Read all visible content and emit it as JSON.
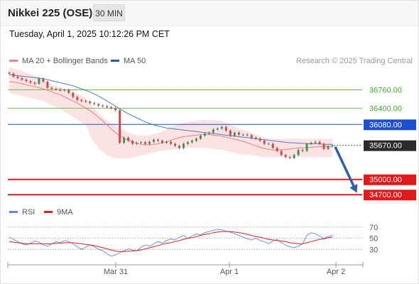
{
  "header": {
    "title": "Nikkei 225 (OSE)",
    "timeframe": "30 MIN",
    "datetime": "Tuesday, April 1, 2025 10:12:26 PM CET",
    "credit": "Research © 2025 Trading Central"
  },
  "legend": {
    "ma20": "MA 20 + Bollinger Bands",
    "ma50": "MA 50",
    "rsi": "RSI",
    "rsi_ma": "9MA"
  },
  "colors": {
    "ma20": "#f08080",
    "bb_fill": "#fbdede",
    "ma50": "#4e79c8",
    "resistance": "#6dbf4f",
    "pivot": "#1f4fd1",
    "support": "#e01a1a",
    "candle_up": "#2e9e48",
    "candle_down": "#e04343",
    "current": "#333333",
    "rsi": "#5b8ce0",
    "rsi_ma": "#e02020"
  },
  "chart_data": [
    {
      "type": "candlestick",
      "y_range": [
        34550,
        37200
      ],
      "x_labels": [
        "Mar 31",
        "Apr 1",
        "Apr 2"
      ],
      "levels": [
        {
          "label": "36760.00",
          "value": 36760,
          "kind": "resistance"
        },
        {
          "label": "36400.00",
          "value": 36400,
          "kind": "resistance"
        },
        {
          "label": "36080.00",
          "value": 36080,
          "kind": "pivot"
        },
        {
          "label": "35670.00",
          "value": 35670,
          "kind": "current"
        },
        {
          "label": "35000.00",
          "value": 35000,
          "kind": "support"
        },
        {
          "label": "34700.00",
          "value": 34700,
          "kind": "support"
        }
      ],
      "closes": [
        37080,
        37020,
        36990,
        36960,
        36930,
        36900,
        36880,
        36980,
        36920,
        36800,
        36780,
        36770,
        36750,
        36760,
        36700,
        36620,
        36560,
        36540,
        36530,
        36500,
        36480,
        36450,
        36440,
        36420,
        36400,
        36360,
        35720,
        35820,
        35760,
        35700,
        35720,
        35730,
        35700,
        35740,
        35780,
        35760,
        35720,
        35740,
        35700,
        35660,
        35620,
        35700,
        35730,
        35760,
        35800,
        35860,
        35900,
        35920,
        35980,
        36000,
        36030,
        35960,
        35860,
        35920,
        35880,
        35880,
        35870,
        35820,
        35800,
        35760,
        35700,
        35700,
        35620,
        35560,
        35480,
        35440,
        35420,
        35480,
        35580,
        35560,
        35700,
        35720,
        35740,
        35700,
        35600,
        35650,
        35670
      ],
      "ma20": [
        36920,
        36910,
        36900,
        36880,
        36860,
        36840,
        36820,
        36800,
        36780,
        36750,
        36720,
        36690,
        36660,
        36620,
        36580,
        36540,
        36500,
        36450,
        36400,
        36350,
        36290,
        36220,
        36150,
        36070,
        35990,
        35920,
        35860,
        35810,
        35770,
        35740,
        35710,
        35690,
        35680,
        35680,
        35690,
        35700,
        35720,
        35740,
        35770,
        35800,
        35820,
        35840,
        35850,
        35860,
        35870,
        35880,
        35880,
        35880,
        35870,
        35860,
        35850,
        35830,
        35810,
        35790,
        35770,
        35750,
        35720,
        35690,
        35660,
        35630,
        35610,
        35590,
        35580,
        35580,
        35580,
        35590,
        35600,
        35610,
        35620,
        35620,
        35630,
        35630,
        35640,
        35640,
        35650,
        35650,
        35650
      ],
      "bb_upper": [
        37200,
        37180,
        37160,
        37130,
        37100,
        37070,
        37040,
        37000,
        36960,
        36900,
        36870,
        36840,
        36810,
        36770,
        36740,
        36710,
        36690,
        36650,
        36600,
        36500,
        36400,
        36300,
        36220,
        36160,
        36110,
        36060,
        36010,
        35960,
        35920,
        35890,
        35870,
        35860,
        35860,
        35870,
        35890,
        35910,
        35940,
        35980,
        36020,
        36060,
        36090,
        36110,
        36130,
        36140,
        36150,
        36160,
        36170,
        36170,
        36170,
        36160,
        36150,
        36120,
        36080,
        36040,
        36000,
        35970,
        35940,
        35910,
        35880,
        35850,
        35820,
        35800,
        35800,
        35800,
        35800,
        35800,
        35800,
        35800,
        35800,
        35800,
        35800,
        35800,
        35800,
        35800,
        35800,
        35800,
        35800
      ],
      "bb_lower": [
        36700,
        36680,
        36660,
        36640,
        36620,
        36600,
        36580,
        36560,
        36540,
        36500,
        36460,
        36420,
        36380,
        36330,
        36280,
        36230,
        36180,
        36120,
        36080,
        35860,
        35720,
        35620,
        35540,
        35480,
        35440,
        35420,
        35410,
        35410,
        35420,
        35430,
        35450,
        35470,
        35490,
        35510,
        35530,
        35550,
        35560,
        35570,
        35580,
        35590,
        35600,
        35610,
        35620,
        35620,
        35620,
        35620,
        35620,
        35610,
        35600,
        35590,
        35580,
        35560,
        35540,
        35520,
        35500,
        35490,
        35480,
        35470,
        35460,
        35450,
        35440,
        35440,
        35440,
        35440,
        35440,
        35440,
        35440,
        35440,
        35440,
        35440,
        35440,
        35440,
        35440,
        35440,
        35440,
        35440,
        35440
      ],
      "ma50": [
        37060,
        37050,
        37040,
        37030,
        37020,
        37010,
        37000,
        36990,
        36980,
        36960,
        36940,
        36920,
        36900,
        36880,
        36860,
        36840,
        36810,
        36780,
        36750,
        36720,
        36680,
        36640,
        36590,
        36540,
        36490,
        36440,
        36390,
        36340,
        36290,
        36250,
        36210,
        36170,
        36130,
        36100,
        36070,
        36050,
        36030,
        36010,
        36000,
        35990,
        35980,
        35970,
        35960,
        35950,
        35940,
        35930,
        35920,
        35910,
        35900,
        35890,
        35880,
        35870,
        35860,
        35850,
        35840,
        35830,
        35820,
        35810,
        35800,
        35790,
        35780,
        35770,
        35760,
        35750,
        35740,
        35730,
        35720,
        35720,
        35710,
        35710,
        35700,
        35700,
        35700,
        35700,
        35690,
        35690,
        35690
      ],
      "forecast": {
        "from": 35670,
        "to": 34700
      }
    },
    {
      "type": "line",
      "name": "RSI",
      "y_range": [
        10,
        80
      ],
      "y_ticks": [
        70,
        50,
        30
      ],
      "rsi": [
        52,
        48,
        44,
        40,
        38,
        41,
        45,
        43,
        38,
        36,
        40,
        44,
        42,
        46,
        44,
        40,
        35,
        30,
        34,
        38,
        35,
        30,
        28,
        22,
        18,
        20,
        24,
        28,
        31,
        29,
        27,
        34,
        38,
        36,
        40,
        44,
        41,
        46,
        49,
        47,
        52,
        55,
        50,
        54,
        58,
        56,
        60,
        62,
        64,
        66,
        65,
        63,
        61,
        58,
        55,
        52,
        49,
        47,
        50,
        46,
        44,
        40,
        45,
        48,
        42,
        38,
        35,
        33,
        36,
        40,
        55,
        60,
        58,
        54,
        50,
        53,
        55
      ],
      "rsi_ma": [
        44,
        43,
        42,
        41,
        40,
        40,
        40,
        40,
        40,
        40,
        40,
        41,
        41,
        42,
        42,
        42,
        41,
        40,
        39,
        38,
        37,
        35,
        33,
        31,
        29,
        27,
        26,
        26,
        27,
        27,
        28,
        29,
        31,
        33,
        35,
        37,
        39,
        41,
        42,
        44,
        46,
        48,
        50,
        51,
        53,
        55,
        57,
        58,
        60,
        61,
        62,
        62,
        62,
        61,
        60,
        59,
        57,
        55,
        53,
        52,
        50,
        48,
        47,
        46,
        45,
        44,
        42,
        41,
        40,
        40,
        42,
        44,
        46,
        48,
        49,
        51,
        52
      ]
    }
  ]
}
